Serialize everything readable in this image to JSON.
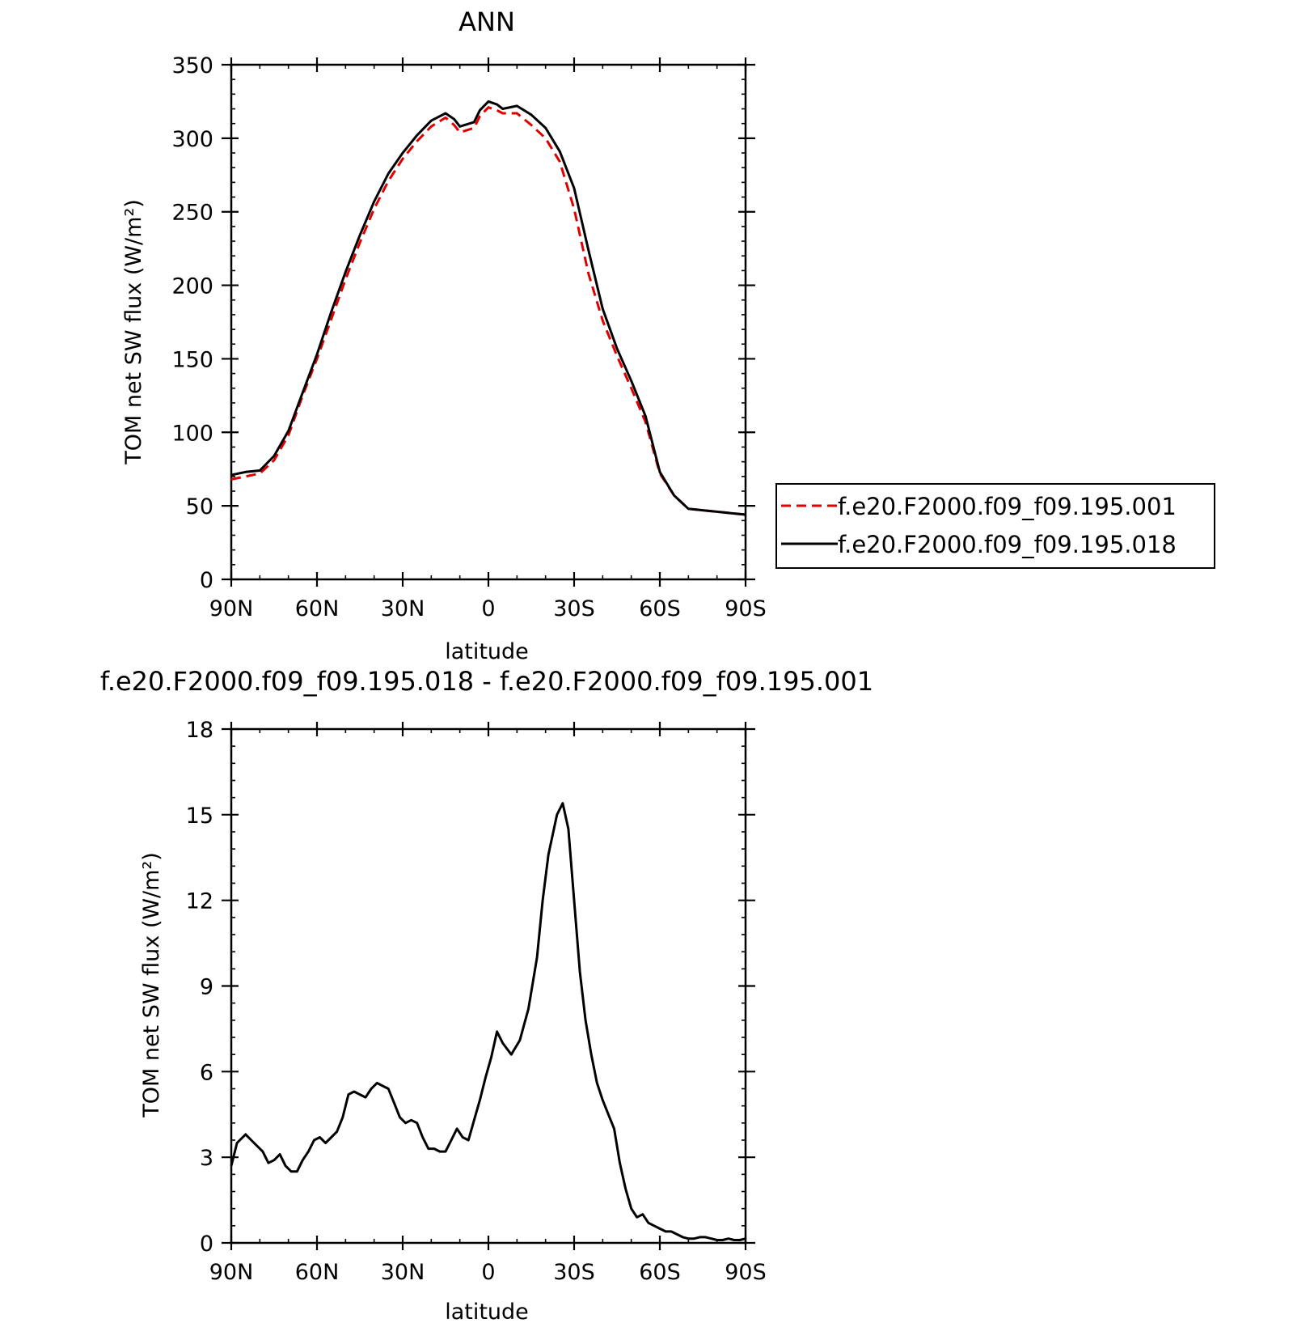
{
  "top_title": "ANN",
  "diff_title": "f.e20.F2000.f09_f09.195.018 - f.e20.F2000.f09_f09.195.001",
  "chart_data": [
    {
      "type": "line",
      "title": "ANN",
      "xlabel": "latitude",
      "ylabel": "TOM net SW flux (W/m²)",
      "xlim": [
        90,
        -90
      ],
      "ylim": [
        0,
        350
      ],
      "xticks": [
        90,
        60,
        30,
        0,
        -30,
        -60,
        -90
      ],
      "xtick_labels": [
        "90N",
        "60N",
        "30N",
        "0",
        "30S",
        "60S",
        "90S"
      ],
      "yticks": [
        0,
        50,
        100,
        150,
        200,
        250,
        300,
        350
      ],
      "ytick_labels": [
        "0",
        "50",
        "100",
        "150",
        "200",
        "250",
        "300",
        "350"
      ],
      "legend": "right",
      "series": [
        {
          "name": "f.e20.F2000.f09_f09.195.001",
          "color": "#e00000",
          "dash": "dashed",
          "x": [
            90,
            85,
            80,
            75,
            70,
            65,
            60,
            55,
            50,
            45,
            40,
            35,
            30,
            25,
            20,
            15,
            12,
            10,
            5,
            3,
            0,
            -3,
            -5,
            -10,
            -15,
            -20,
            -25,
            -30,
            -35,
            -40,
            -45,
            -50,
            -55,
            -60,
            -65,
            -70,
            -75,
            -80,
            -85,
            -90
          ],
          "y": [
            68,
            70,
            72,
            81,
            98,
            125,
            150,
            177,
            204,
            229,
            252,
            271,
            286,
            298,
            308,
            314,
            309,
            304,
            307,
            315,
            321,
            319,
            317,
            317,
            309,
            300,
            284,
            252,
            208,
            176,
            152,
            130,
            107,
            72,
            57,
            48,
            47,
            46,
            45,
            44
          ]
        },
        {
          "name": "f.e20.F2000.f09_f09.195.018",
          "color": "#000000",
          "dash": "solid",
          "x": [
            90,
            85,
            80,
            75,
            70,
            65,
            60,
            55,
            50,
            45,
            40,
            35,
            30,
            25,
            20,
            15,
            12,
            10,
            5,
            3,
            0,
            -3,
            -5,
            -10,
            -15,
            -20,
            -25,
            -30,
            -35,
            -40,
            -45,
            -50,
            -55,
            -60,
            -65,
            -70,
            -75,
            -80,
            -85,
            -90
          ],
          "y": [
            71,
            73,
            74,
            84,
            101,
            127,
            153,
            182,
            209,
            234,
            257,
            276,
            290,
            302,
            312,
            317,
            313,
            308,
            311,
            319,
            325,
            323,
            320,
            322,
            316,
            307,
            291,
            266,
            224,
            184,
            157,
            135,
            111,
            73,
            57,
            48,
            47,
            46,
            45,
            44
          ]
        }
      ]
    },
    {
      "type": "line",
      "title": "f.e20.F2000.f09_f09.195.018 - f.e20.F2000.f09_f09.195.001",
      "xlabel": "latitude",
      "ylabel": "TOM net SW flux (W/m²)",
      "xlim": [
        90,
        -90
      ],
      "ylim": [
        0,
        18
      ],
      "xticks": [
        90,
        60,
        30,
        0,
        -30,
        -60,
        -90
      ],
      "xtick_labels": [
        "90N",
        "60N",
        "30N",
        "0",
        "30S",
        "60S",
        "90S"
      ],
      "yticks": [
        0,
        3,
        6,
        9,
        12,
        15,
        18
      ],
      "ytick_labels": [
        "0",
        "3",
        "6",
        "9",
        "12",
        "15",
        "18"
      ],
      "series": [
        {
          "color": "#000000",
          "dash": "solid",
          "x": [
            90,
            88,
            85,
            83,
            81,
            79,
            77,
            75,
            73,
            71,
            69,
            67,
            65,
            63,
            61,
            59,
            57,
            55,
            53,
            51,
            49,
            47,
            45,
            43,
            41,
            39,
            37,
            35,
            33,
            31,
            29,
            27,
            25,
            23,
            21,
            19,
            17,
            15,
            13,
            11,
            9,
            7,
            5,
            3,
            1,
            -1,
            -3,
            -5,
            -8,
            -11,
            -14,
            -17,
            -19,
            -21,
            -24,
            -26,
            -28,
            -30,
            -32,
            -34,
            -36,
            -38,
            -40,
            -42,
            -44,
            -46,
            -48,
            -50,
            -52,
            -54,
            -56,
            -58,
            -60,
            -62,
            -64,
            -66,
            -68,
            -70,
            -72,
            -74,
            -76,
            -78,
            -80,
            -82,
            -84,
            -86,
            -88,
            -90
          ],
          "y": [
            2.7,
            3.5,
            3.8,
            3.6,
            3.4,
            3.2,
            2.8,
            2.9,
            3.1,
            2.7,
            2.5,
            2.5,
            2.9,
            3.2,
            3.6,
            3.7,
            3.5,
            3.7,
            3.9,
            4.4,
            5.2,
            5.3,
            5.2,
            5.1,
            5.4,
            5.6,
            5.5,
            5.4,
            4.9,
            4.4,
            4.2,
            4.3,
            4.2,
            3.7,
            3.3,
            3.3,
            3.2,
            3.2,
            3.6,
            4.0,
            3.7,
            3.6,
            4.3,
            5.0,
            5.8,
            6.5,
            7.4,
            7.0,
            6.6,
            7.1,
            8.2,
            10.0,
            12.0,
            13.6,
            15.0,
            15.4,
            14.5,
            12.0,
            9.5,
            7.8,
            6.6,
            5.6,
            5.0,
            4.5,
            4.0,
            2.8,
            1.9,
            1.2,
            0.9,
            1.0,
            0.7,
            0.6,
            0.5,
            0.4,
            0.4,
            0.3,
            0.2,
            0.15,
            0.15,
            0.2,
            0.2,
            0.15,
            0.1,
            0.1,
            0.15,
            0.1,
            0.1,
            0.15
          ]
        }
      ]
    }
  ]
}
